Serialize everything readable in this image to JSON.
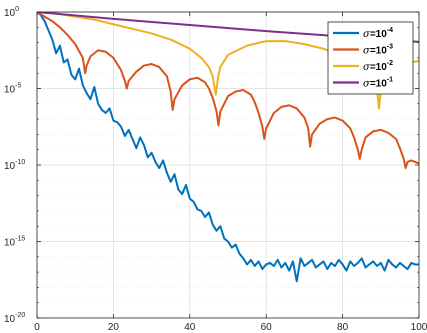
{
  "chart_data": {
    "type": "line",
    "xlim": [
      0,
      100
    ],
    "ylim_log10": [
      -20,
      0
    ],
    "y_scale": "log",
    "grid": true,
    "legend_position": "top-right",
    "x_ticks": [
      0,
      20,
      40,
      60,
      80,
      100
    ],
    "x_tick_labels": [
      "0",
      "20",
      "40",
      "60",
      "80",
      "100"
    ],
    "y_ticks_log10": [
      0,
      -5,
      -10,
      -15,
      -20
    ],
    "y_tick_labels": [
      {
        "base": "10",
        "exp": "0"
      },
      {
        "base": "10",
        "exp": "-5"
      },
      {
        "base": "10",
        "exp": "-10"
      },
      {
        "base": "10",
        "exp": "-15"
      },
      {
        "base": "10",
        "exp": "-20"
      }
    ],
    "series": [
      {
        "name": "σ=10-4",
        "legend_symbol": "σ",
        "legend_base": "=10",
        "legend_exp": "-4",
        "color": "#0072BD",
        "x": [
          0,
          1,
          2,
          3,
          4,
          5,
          6,
          7,
          8,
          9,
          10,
          11,
          12,
          13,
          14,
          15,
          16,
          17,
          18,
          19,
          20,
          21,
          22,
          23,
          24,
          25,
          26,
          27,
          28,
          29,
          30,
          31,
          32,
          33,
          34,
          35,
          36,
          37,
          38,
          39,
          40,
          41,
          42,
          43,
          44,
          45,
          46,
          47,
          48,
          49,
          50,
          51,
          52,
          53,
          54,
          55,
          56,
          57,
          58,
          59,
          60,
          61,
          62,
          63,
          64,
          65,
          66,
          67,
          68,
          69,
          70,
          71,
          72,
          73,
          74,
          75,
          76,
          77,
          78,
          79,
          80,
          81,
          82,
          83,
          84,
          85,
          86,
          87,
          88,
          89,
          90,
          91,
          92,
          93,
          94,
          95,
          96,
          97,
          98,
          99,
          100
        ],
        "y_log10": [
          0,
          -0.2,
          -0.6,
          -1.2,
          -1.8,
          -2.7,
          -2.2,
          -3.3,
          -3.1,
          -4.1,
          -4.4,
          -3.7,
          -4.8,
          -5.3,
          -5.7,
          -4.9,
          -6.0,
          -6.4,
          -6.6,
          -6.3,
          -7.1,
          -7.2,
          -7.5,
          -8.1,
          -7.7,
          -8.3,
          -8.9,
          -8.2,
          -8.7,
          -9.5,
          -9.2,
          -9.8,
          -10.2,
          -9.7,
          -10.5,
          -11.1,
          -10.6,
          -11.6,
          -11.9,
          -11.3,
          -12.2,
          -12.4,
          -12.9,
          -13.0,
          -13.4,
          -13.1,
          -13.9,
          -14.3,
          -14.0,
          -14.8,
          -15.0,
          -15.4,
          -15.2,
          -15.8,
          -16.1,
          -16.5,
          -16.2,
          -16.6,
          -16.3,
          -16.8,
          -16.5,
          -16.4,
          -16.6,
          -16.2,
          -16.7,
          -16.4,
          -16.9,
          -16.3,
          -17.6,
          -16.1,
          -16.6,
          -16.4,
          -16.2,
          -16.7,
          -16.5,
          -16.3,
          -16.8,
          -16.4,
          -16.6,
          -16.2,
          -16.5,
          -16.9,
          -16.3,
          -16.6,
          -16.4,
          -16.1,
          -16.7,
          -16.5,
          -16.3,
          -16.6,
          -16.4,
          -16.9,
          -16.2,
          -16.5,
          -16.7,
          -16.4,
          -16.6,
          -16.8,
          -16.4,
          -16.5,
          -16.5
        ]
      },
      {
        "name": "σ=10-3",
        "legend_symbol": "σ",
        "legend_base": "=10",
        "legend_exp": "-3",
        "color": "#D95319",
        "x": [
          0,
          2,
          4,
          6,
          8,
          10,
          12,
          12.6,
          13,
          14,
          16,
          18,
          20,
          22,
          23,
          23.5,
          24,
          26,
          28,
          30,
          32,
          34,
          35,
          35.5,
          36,
          38,
          40,
          42,
          44,
          45,
          46,
          47,
          47.5,
          48,
          50,
          52,
          54,
          56,
          57,
          58,
          59,
          59.5,
          60,
          62,
          64,
          66,
          68,
          70,
          71,
          71.5,
          72,
          74,
          76,
          78,
          80,
          82,
          83,
          84,
          84.5,
          85,
          86,
          88,
          90,
          92,
          94,
          95,
          96,
          96.5,
          97,
          98,
          100
        ],
        "y_log10": [
          0,
          -0.3,
          -0.6,
          -1.0,
          -1.5,
          -2.1,
          -3.0,
          -4.0,
          -3.5,
          -2.9,
          -2.5,
          -2.6,
          -3.0,
          -3.8,
          -4.5,
          -5.0,
          -4.5,
          -3.9,
          -3.5,
          -3.4,
          -3.6,
          -4.2,
          -5.2,
          -6.4,
          -5.7,
          -4.8,
          -4.4,
          -4.3,
          -4.6,
          -5.0,
          -5.6,
          -6.5,
          -7.4,
          -6.5,
          -5.5,
          -5.2,
          -5.1,
          -5.4,
          -5.9,
          -6.6,
          -7.5,
          -8.3,
          -7.6,
          -6.6,
          -6.2,
          -6.1,
          -6.3,
          -6.9,
          -7.6,
          -8.8,
          -8.0,
          -7.3,
          -7.0,
          -6.9,
          -7.1,
          -7.6,
          -8.2,
          -9.0,
          -9.6,
          -9.0,
          -8.2,
          -7.8,
          -7.7,
          -7.9,
          -8.3,
          -8.9,
          -9.6,
          -10.2,
          -9.8,
          -9.7,
          -9.9
        ]
      },
      {
        "name": "σ=10-2",
        "legend_symbol": "σ",
        "legend_base": "=10",
        "legend_exp": "-2",
        "color": "#EDB120",
        "x": [
          0,
          5,
          10,
          15,
          20,
          25,
          30,
          35,
          40,
          43,
          45,
          46,
          46.8,
          47.5,
          48,
          50,
          55,
          60,
          65,
          70,
          75,
          80,
          85,
          88,
          89,
          89.5,
          90,
          91,
          93,
          95,
          100
        ],
        "y_log10": [
          0,
          -0.1,
          -0.3,
          -0.5,
          -0.8,
          -1.1,
          -1.4,
          -1.8,
          -2.4,
          -3.0,
          -3.6,
          -4.2,
          -5.4,
          -4.1,
          -3.6,
          -2.8,
          -2.2,
          -1.9,
          -1.9,
          -2.1,
          -2.4,
          -2.9,
          -3.6,
          -4.3,
          -4.9,
          -6.3,
          -5.2,
          -4.4,
          -3.8,
          -3.4,
          -3.2
        ]
      },
      {
        "name": "σ=10-1",
        "legend_symbol": "σ",
        "legend_base": "=10",
        "legend_exp": "-1",
        "color": "#7E2F8E",
        "x": [
          0,
          20,
          40,
          60,
          80,
          100
        ],
        "y_log10": [
          0,
          -0.45,
          -0.85,
          -1.25,
          -1.6,
          -1.95
        ]
      }
    ]
  }
}
